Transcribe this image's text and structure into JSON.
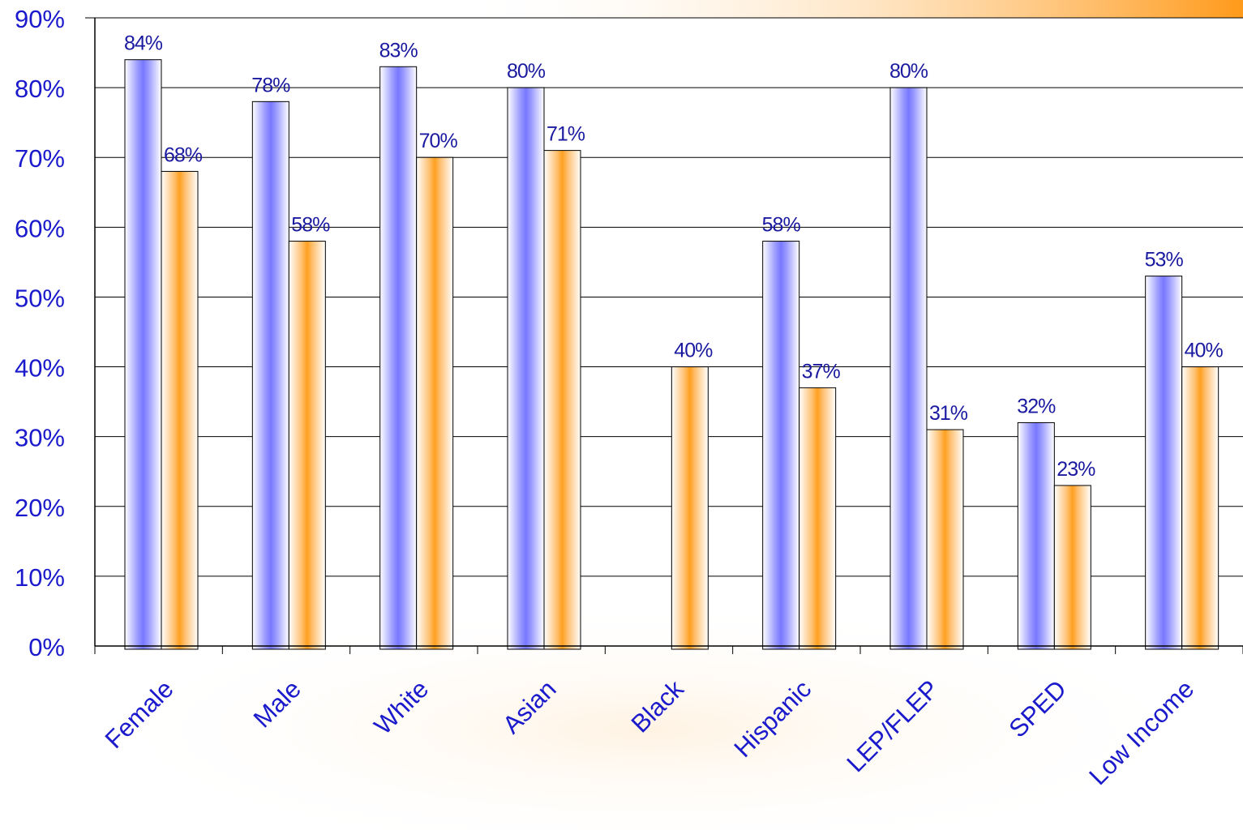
{
  "chart_data": {
    "type": "bar",
    "categories": [
      "Female",
      "Male",
      "White",
      "Asian",
      "Black",
      "Hispanic",
      "LEP/FLEP",
      "SPED",
      "Low Income"
    ],
    "series": [
      {
        "values": [
          84,
          78,
          83,
          80,
          null,
          58,
          80,
          32,
          53
        ],
        "labels": [
          "84%",
          "78%",
          "83%",
          "80%",
          "",
          "58%",
          "80%",
          "32%",
          "53%"
        ],
        "color": "#8080ff"
      },
      {
        "values": [
          68,
          58,
          70,
          71,
          40,
          37,
          31,
          23,
          40
        ],
        "labels": [
          "68%",
          "58%",
          "70%",
          "71%",
          "40%",
          "37%",
          "31%",
          "23%",
          "40%"
        ],
        "color": "#ffa020"
      }
    ],
    "yticks": [
      "0%",
      "10%",
      "20%",
      "30%",
      "40%",
      "50%",
      "60%",
      "70%",
      "80%",
      "90%"
    ],
    "ylim": [
      0,
      90
    ],
    "grid": true,
    "label_color": "#1a1aa0",
    "axis_label_color": "#1a1acc"
  }
}
